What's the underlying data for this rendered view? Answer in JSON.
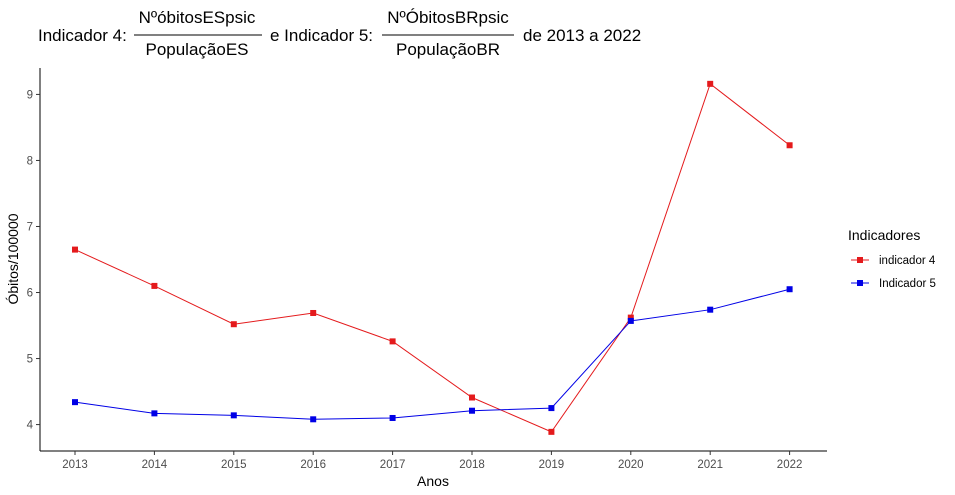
{
  "title": {
    "part1": "Indicador 4:",
    "frac1_num": "NºóbitosESpsic",
    "frac1_den": "PopulaçãoES",
    "part2": "e Indicador 5:",
    "frac2_num": "NºÓbitosBRpsic",
    "frac2_den": "PopulaçãoBR",
    "part3": "de 2013 a 2022"
  },
  "chart_data": {
    "type": "line",
    "x": [
      2013,
      2014,
      2015,
      2016,
      2017,
      2018,
      2019,
      2020,
      2021,
      2022
    ],
    "series": [
      {
        "name": "indicador 4",
        "color": "#e41a1c",
        "values": [
          6.65,
          6.1,
          5.52,
          5.69,
          5.26,
          4.41,
          3.89,
          5.62,
          9.16,
          8.23
        ]
      },
      {
        "name": "Indicador 5",
        "color": "#0000e6",
        "values": [
          4.34,
          4.17,
          4.14,
          4.08,
          4.1,
          4.21,
          4.25,
          5.57,
          5.74,
          6.05
        ]
      }
    ],
    "xlabel": "Anos",
    "ylabel": "Óbitos/100000",
    "ylim": [
      3.6,
      9.4
    ],
    "yticks": [
      4,
      5,
      6,
      7,
      8,
      9
    ],
    "legend_title": "Indicadores",
    "legend_position": "right",
    "grid": false
  }
}
